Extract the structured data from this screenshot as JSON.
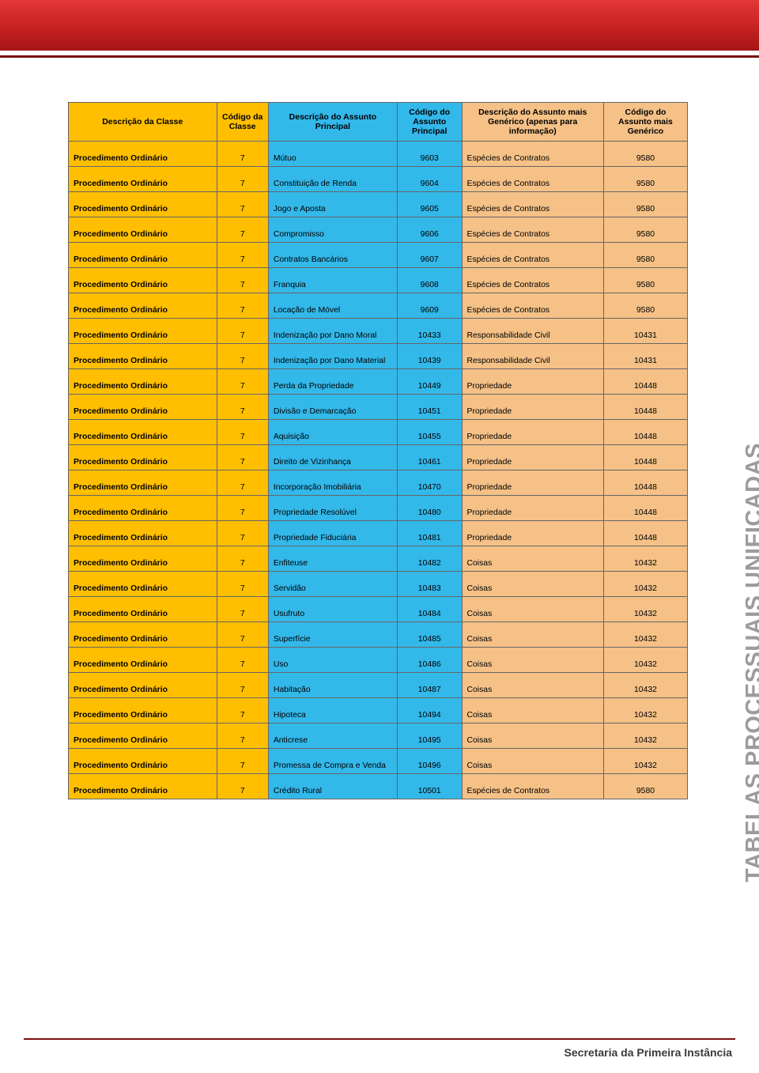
{
  "side_title": "TABELAS PROCESSUAIS UNIFICADAS",
  "footer_text": "Secretaria da Primeira Instância",
  "table": {
    "columns": [
      "Descrição da Classe",
      "Código da Classe",
      "Descrição do Assunto Principal",
      "Código do Assunto Principal",
      "Descrição do Assunto mais Genérico (apenas para informação)",
      "Código do Assunto mais Genérico"
    ],
    "col_widths_pct": [
      23,
      8,
      20,
      10,
      22,
      13
    ],
    "header_colors": [
      "#ffbf00",
      "#ffbf00",
      "#33b8ea",
      "#33b8ea",
      "#f5c187",
      "#f5c187"
    ],
    "body_colors": [
      "#ffbf00",
      "#ffbf00",
      "#33b8ea",
      "#33b8ea",
      "#f5c187",
      "#f5c187"
    ],
    "border_color": "#666666",
    "font_size_pt": 8,
    "rows": [
      [
        "Procedimento Ordinário",
        "7",
        "Mútuo",
        "9603",
        "Espécies de Contratos",
        "9580"
      ],
      [
        "Procedimento Ordinário",
        "7",
        "Constituição de Renda",
        "9604",
        "Espécies de Contratos",
        "9580"
      ],
      [
        "Procedimento Ordinário",
        "7",
        "Jogo e Aposta",
        "9605",
        "Espécies de Contratos",
        "9580"
      ],
      [
        "Procedimento Ordinário",
        "7",
        "Compromisso",
        "9606",
        "Espécies de Contratos",
        "9580"
      ],
      [
        "Procedimento Ordinário",
        "7",
        "Contratos Bancários",
        "9607",
        "Espécies de Contratos",
        "9580"
      ],
      [
        "Procedimento Ordinário",
        "7",
        "Franquia",
        "9608",
        "Espécies de Contratos",
        "9580"
      ],
      [
        "Procedimento Ordinário",
        "7",
        "Locação de Móvel",
        "9609",
        "Espécies de Contratos",
        "9580"
      ],
      [
        "Procedimento Ordinário",
        "7",
        "Indenização por Dano Moral",
        "10433",
        "Responsabilidade Civil",
        "10431"
      ],
      [
        "Procedimento Ordinário",
        "7",
        "Indenização por Dano Material",
        "10439",
        "Responsabilidade Civil",
        "10431"
      ],
      [
        "Procedimento Ordinário",
        "7",
        "Perda da Propriedade",
        "10449",
        "Propriedade",
        "10448"
      ],
      [
        "Procedimento Ordinário",
        "7",
        "Divisão e Demarcação",
        "10451",
        "Propriedade",
        "10448"
      ],
      [
        "Procedimento Ordinário",
        "7",
        "Aquisição",
        "10455",
        "Propriedade",
        "10448"
      ],
      [
        "Procedimento Ordinário",
        "7",
        "Direito de Vizinhança",
        "10461",
        "Propriedade",
        "10448"
      ],
      [
        "Procedimento Ordinário",
        "7",
        "Incorporação Imobiliária",
        "10470",
        "Propriedade",
        "10448"
      ],
      [
        "Procedimento Ordinário",
        "7",
        "Propriedade Resolúvel",
        "10480",
        "Propriedade",
        "10448"
      ],
      [
        "Procedimento Ordinário",
        "7",
        "Propriedade Fiduciária",
        "10481",
        "Propriedade",
        "10448"
      ],
      [
        "Procedimento Ordinário",
        "7",
        "Enfiteuse",
        "10482",
        "Coisas",
        "10432"
      ],
      [
        "Procedimento Ordinário",
        "7",
        "Servidão",
        "10483",
        "Coisas",
        "10432"
      ],
      [
        "Procedimento Ordinário",
        "7",
        "Usufruto",
        "10484",
        "Coisas",
        "10432"
      ],
      [
        "Procedimento Ordinário",
        "7",
        "Superfície",
        "10485",
        "Coisas",
        "10432"
      ],
      [
        "Procedimento Ordinário",
        "7",
        "Uso",
        "10486",
        "Coisas",
        "10432"
      ],
      [
        "Procedimento Ordinário",
        "7",
        "Habitação",
        "10487",
        "Coisas",
        "10432"
      ],
      [
        "Procedimento Ordinário",
        "7",
        "Hipoteca",
        "10494",
        "Coisas",
        "10432"
      ],
      [
        "Procedimento Ordinário",
        "7",
        "Anticrese",
        "10495",
        "Coisas",
        "10432"
      ],
      [
        "Procedimento Ordinário",
        "7",
        "Promessa de Compra e Venda",
        "10496",
        "Coisas",
        "10432"
      ],
      [
        "Procedimento Ordinário",
        "7",
        "Crédito Rural",
        "10501",
        "Espécies de Contratos",
        "9580"
      ]
    ]
  }
}
